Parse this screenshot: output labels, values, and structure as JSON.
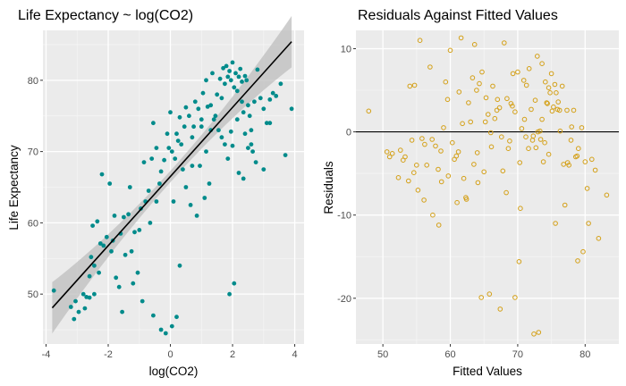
{
  "chart_data": [
    {
      "type": "scatter",
      "title": "Life Expectancy ~ log(CO2)",
      "xlabel": "log(CO2)",
      "ylabel": "Life Expectancy",
      "xlim": [
        -4.1,
        4.3
      ],
      "ylim": [
        43,
        87
      ],
      "xticks": [
        -4,
        -2,
        0,
        2,
        4
      ],
      "yticks": [
        50,
        60,
        70,
        80
      ],
      "grid": true,
      "legend": "none",
      "point_color": "#008B8B",
      "line_color": "#000000",
      "band_color": "#bdbdbd",
      "fit": {
        "intercept": 66.5,
        "slope": 4.85,
        "x_range": [
          -3.8,
          3.9
        ]
      },
      "series": [
        {
          "x": [
            -3.75,
            -3.2,
            -3.05,
            -2.95,
            -2.8,
            -2.7,
            -2.6,
            -2.55,
            -2.5,
            -2.45,
            -2.35,
            -2.25,
            -2.2,
            -2.15,
            -2.05,
            -1.95,
            -1.85,
            -1.8,
            -1.75,
            -1.65,
            -1.6,
            -1.5,
            -1.45,
            -1.35,
            -1.3,
            -1.25,
            -1.15,
            -1.05,
            -0.95,
            -0.85,
            -0.8,
            -0.7,
            -0.6,
            -0.55,
            -0.45,
            -0.35,
            -0.3,
            -0.2,
            -0.1,
            0.0,
            0.05,
            0.15,
            0.2,
            0.3,
            0.35,
            0.45,
            0.5,
            0.6,
            0.7,
            0.75,
            0.8,
            0.9,
            1.0,
            1.05,
            1.15,
            1.2,
            1.3,
            1.35,
            1.45,
            1.5,
            1.6,
            1.65,
            1.7,
            1.75,
            1.8,
            1.85,
            1.9,
            1.95,
            2.0,
            2.05,
            2.1,
            2.15,
            2.2,
            2.25,
            2.3,
            2.35,
            2.4,
            2.45,
            2.5,
            2.6,
            2.7,
            2.8,
            2.9,
            3.0,
            3.1,
            3.2,
            3.3,
            3.4,
            3.55,
            3.7,
            3.9,
            -0.55,
            -0.3,
            -0.15,
            0.05,
            0.2,
            0.3,
            1.9,
            2.05,
            0.1,
            0.5,
            0.95,
            1.25,
            2.35,
            2.5,
            2.75,
            3.0,
            3.2,
            1.55,
            1.65,
            1.75,
            1.95,
            2.15,
            2.3,
            2.4,
            2.55,
            2.65,
            2.0,
            1.85,
            2.2,
            0.65,
            0.85,
            1.1,
            -1.0,
            -0.65,
            -0.45,
            -2.6,
            -2.3,
            -1.9,
            -1.55,
            -1.2,
            -0.9,
            0.4,
            -0.05,
            0.25,
            0.7,
            1.4,
            1.15,
            -3.1,
            -2.75,
            -2.45,
            1.0,
            1.3,
            2.6
          ],
          "y": [
            50.5,
            48.2,
            49.0,
            47.5,
            50.0,
            49.6,
            52.5,
            55.2,
            59.6,
            54.0,
            60.2,
            57.1,
            66.8,
            56.8,
            58.0,
            65.5,
            57.5,
            61.0,
            52.3,
            51.0,
            58.5,
            60.8,
            55.5,
            61.2,
            65.0,
            56.0,
            58.7,
            53.0,
            62.0,
            68.5,
            63.0,
            64.5,
            69.0,
            74.0,
            70.5,
            65.5,
            67.2,
            68.8,
            72.5,
            75.5,
            70.0,
            69.0,
            72.5,
            74.8,
            71.0,
            73.5,
            76.2,
            75.0,
            72.0,
            73.5,
            77.0,
            76.0,
            74.5,
            78.2,
            80.0,
            76.3,
            73.0,
            81.0,
            75.0,
            78.0,
            80.2,
            77.5,
            81.7,
            79.5,
            82.0,
            80.5,
            81.3,
            80.0,
            82.5,
            79.0,
            81.0,
            78.5,
            80.5,
            81.6,
            79.8,
            75.5,
            80.6,
            80.0,
            76.5,
            73.0,
            77.0,
            81.5,
            77.5,
            76.0,
            74.0,
            77.3,
            78.2,
            77.8,
            79.5,
            69.5,
            76.0,
            47.0,
            45.0,
            44.5,
            45.5,
            46.8,
            54.0,
            50.0,
            51.5,
            63.0,
            65.0,
            68.0,
            65.5,
            66.2,
            70.5,
            68.5,
            67.5,
            74.0,
            73.0,
            72.0,
            71.0,
            72.8,
            74.5,
            77.0,
            72.5,
            75.0,
            70.0,
            70.8,
            69.0,
            67.0,
            62.5,
            61.0,
            63.5,
            59.0,
            60.0,
            63.0,
            49.5,
            53.0,
            56.0,
            47.5,
            51.5,
            49.0,
            67.5,
            70.5,
            71.5,
            68.0,
            74.5,
            70.0,
            46.5,
            48.0,
            50.0,
            73.5,
            76.5,
            71.0
          ]
        }
      ]
    },
    {
      "type": "scatter",
      "title": "Residuals Against Fitted Values",
      "xlabel": "Fitted Values",
      "ylabel": "Residuals",
      "xlim": [
        46,
        85
      ],
      "ylim": [
        -25.5,
        12.2
      ],
      "xticks": [
        50,
        60,
        70,
        80
      ],
      "yticks": [
        -20,
        -10,
        0,
        10
      ],
      "grid": true,
      "legend": "none",
      "point_color": "#D4A017",
      "hline": 0,
      "line_color": "#000000",
      "series": [
        {
          "x": [
            47.9,
            50.6,
            51.0,
            51.4,
            52.3,
            53.0,
            53.3,
            54.0,
            54.3,
            54.7,
            55.2,
            55.5,
            56.1,
            56.5,
            57.0,
            57.4,
            57.8,
            58.2,
            58.7,
            59.0,
            59.3,
            59.6,
            60.0,
            60.3,
            60.6,
            61.0,
            61.3,
            61.6,
            62.0,
            62.4,
            62.7,
            63.0,
            63.3,
            63.6,
            64.0,
            64.3,
            64.7,
            65.0,
            65.3,
            65.6,
            66.0,
            66.3,
            66.6,
            67.0,
            67.3,
            67.6,
            68.0,
            68.3,
            68.6,
            69.0,
            69.3,
            69.6,
            70.0,
            70.3,
            70.6,
            71.0,
            71.3,
            71.6,
            72.0,
            72.3,
            72.6,
            73.0,
            73.3,
            73.6,
            74.0,
            74.3,
            74.6,
            75.0,
            75.3,
            75.6,
            76.0,
            76.3,
            76.6,
            77.0,
            77.3,
            77.6,
            78.0,
            78.3,
            78.6,
            79.0,
            79.5,
            80.0,
            80.5,
            81.0,
            82.0,
            83.2,
            55.0,
            58.3,
            61.2,
            63.5,
            64.6,
            65.8,
            67.4,
            69.6,
            70.2,
            72.4,
            73.1,
            74.1,
            74.8,
            75.5,
            76.2,
            74.4,
            75.1,
            73.6,
            72.9,
            71.7,
            70.9,
            69.2,
            68.4,
            66.9,
            65.2,
            64.1,
            62.3,
            60.9,
            59.7,
            58.6,
            57.3,
            56.2,
            55.8,
            54.6,
            53.8,
            52.6,
            61.8,
            63.9,
            66.1,
            68.8,
            71.2,
            72.7,
            73.8,
            75.7,
            76.8,
            77.9,
            78.8,
            80.3,
            67.8,
            70.4,
            72.2,
            73.4,
            74.6,
            75.9,
            77.4,
            78.9,
            79.7,
            81.5
          ],
          "y": [
            2.5,
            -2.4,
            -3.0,
            -2.6,
            -5.5,
            -3.4,
            -3.0,
            5.5,
            -1.0,
            5.6,
            -7.0,
            11.0,
            -8.2,
            -4.0,
            7.8,
            -10.0,
            -1.7,
            -4.5,
            -6.0,
            0.5,
            6.0,
            3.9,
            9.8,
            -1.3,
            -3.3,
            -8.5,
            4.8,
            11.3,
            -5.6,
            -8.1,
            3.5,
            1.2,
            6.5,
            10.5,
            -2.5,
            5.8,
            7.2,
            -4.8,
            4.1,
            2.1,
            -0.1,
            5.5,
            1.6,
            3.9,
            2.9,
            -0.6,
            10.7,
            -7.3,
            -2.0,
            3.4,
            7.0,
            2.4,
            7.2,
            -3.7,
            0.4,
            1.5,
            5.6,
            -2.0,
            2.7,
            -0.5,
            3.8,
            0.0,
            0.1,
            8.2,
            -1.3,
            3.5,
            5.3,
            7.0,
            3.0,
            -11.0,
            3.6,
            0.1,
            5.5,
            -8.8,
            2.6,
            -4.0,
            0.6,
            2.6,
            -3.0,
            -2.0,
            0.5,
            -3.6,
            -11.0,
            -3.3,
            -12.8,
            -7.6,
            -4.0,
            -11.2,
            -2.4,
            -3.9,
            -19.9,
            -19.5,
            -21.3,
            -19.9,
            -15.6,
            -24.3,
            -24.1,
            6.0,
            4.7,
            5.7,
            2.6,
            3.4,
            2.5,
            1.5,
            9.1,
            7.6,
            6.2,
            3.1,
            4.0,
            2.6,
            1.2,
            -6.1,
            -7.9,
            -2.9,
            -5.3,
            -2.3,
            -0.9,
            -1.5,
            -0.8,
            -4.9,
            -5.9,
            -2.2,
            1.0,
            5.0,
            -1.8,
            -1.1,
            -0.6,
            -1.9,
            -3.6,
            4.7,
            -3.9,
            -1.0,
            -2.9,
            -6.8,
            -4.7,
            -9.2,
            -1.0,
            -0.9,
            -2.7,
            2.7,
            -3.7,
            -15.5,
            -14.4,
            -4.6
          ]
        }
      ]
    }
  ]
}
